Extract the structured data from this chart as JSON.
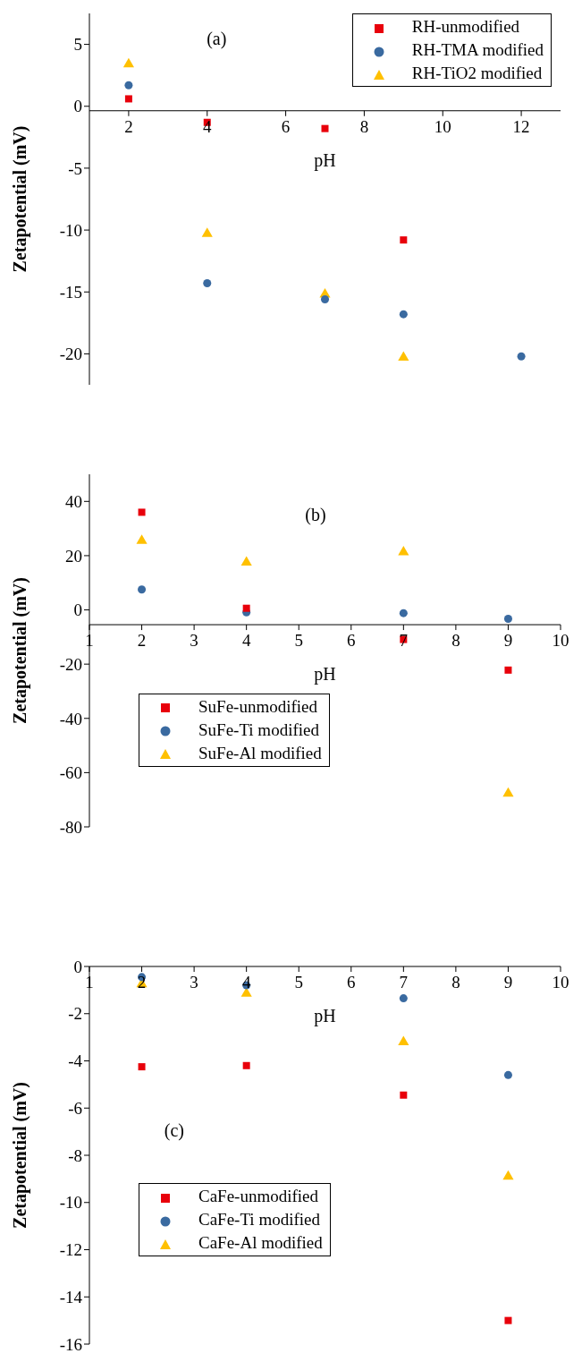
{
  "chart_data": [
    {
      "type": "scatter",
      "title": "(a)",
      "xlabel": "pH",
      "ylabel": "Zetapotential (mV)",
      "xlim": [
        1,
        13
      ],
      "xticks": [
        2,
        4,
        6,
        8,
        10,
        12
      ],
      "ylim": [
        -22.5,
        7.5
      ],
      "yticks": [
        -20,
        -15,
        -10,
        -5,
        0,
        5
      ],
      "legend": "top right",
      "grid": false,
      "series": [
        {
          "name": "RH-unmodified",
          "color": "#e8000b",
          "marker": "square",
          "x": [
            2,
            4,
            7,
            9
          ],
          "values": [
            0.6,
            -1.3,
            -1.8,
            -10.8
          ]
        },
        {
          "name": "RH-TMA modified",
          "color": "#3a6aa0",
          "marker": "circle",
          "x": [
            2,
            4,
            7,
            9,
            12
          ],
          "values": [
            1.7,
            -14.3,
            -15.6,
            -16.8,
            -20.2
          ]
        },
        {
          "name": "RH-TiO2 modified",
          "color": "#ffc000",
          "marker": "triangle",
          "x": [
            2,
            4,
            7,
            9
          ],
          "values": [
            3.4,
            -10.3,
            -15.2,
            -20.3
          ]
        }
      ]
    },
    {
      "type": "scatter",
      "title": "(b)",
      "xlabel": "pH",
      "ylabel": "Zetapotential (mV)",
      "xlim": [
        1,
        10
      ],
      "xticks": [
        1,
        2,
        3,
        4,
        5,
        6,
        7,
        8,
        9,
        10
      ],
      "ylim": [
        -80,
        50
      ],
      "yticks": [
        -80,
        -60,
        -40,
        -20,
        0,
        20,
        40
      ],
      "legend": "left",
      "grid": false,
      "series": [
        {
          "name": "SuFe-unmodified",
          "color": "#e8000b",
          "marker": "square",
          "x": [
            2,
            4,
            7,
            9
          ],
          "values": [
            36,
            0.6,
            -10.9,
            -22.2
          ]
        },
        {
          "name": "SuFe-Ti modified",
          "color": "#3a6aa0",
          "marker": "circle",
          "x": [
            2,
            4,
            7,
            9
          ],
          "values": [
            7.5,
            -0.9,
            -1.2,
            -3.3
          ]
        },
        {
          "name": "SuFe-Al modified",
          "color": "#ffc000",
          "marker": "triangle",
          "x": [
            2,
            4,
            7,
            9
          ],
          "values": [
            25.5,
            17.5,
            21.3,
            -67.7
          ]
        }
      ]
    },
    {
      "type": "scatter",
      "title": "(c)",
      "xlabel": "pH",
      "ylabel": "Zetapotential (mV)",
      "xlim": [
        1,
        10
      ],
      "xticks": [
        1,
        2,
        3,
        4,
        5,
        6,
        7,
        8,
        9,
        10
      ],
      "ylim": [
        -16,
        0
      ],
      "yticks": [
        -16,
        -14,
        -12,
        -10,
        -8,
        -6,
        -4,
        -2,
        0
      ],
      "legend": "left",
      "grid": false,
      "series": [
        {
          "name": "CaFe-unmodified",
          "color": "#e8000b",
          "marker": "square",
          "x": [
            2,
            4,
            7,
            9
          ],
          "values": [
            -4.25,
            -4.2,
            -5.45,
            -15
          ]
        },
        {
          "name": "CaFe-Ti modified",
          "color": "#3a6aa0",
          "marker": "circle",
          "x": [
            2,
            4,
            7,
            9
          ],
          "values": [
            -0.45,
            -0.8,
            -1.35,
            -4.6
          ]
        },
        {
          "name": "CaFe-Al modified",
          "color": "#ffc000",
          "marker": "triangle",
          "x": [
            2,
            4,
            7,
            9
          ],
          "values": [
            -0.75,
            -1.15,
            -3.2,
            -8.9
          ]
        }
      ]
    }
  ]
}
